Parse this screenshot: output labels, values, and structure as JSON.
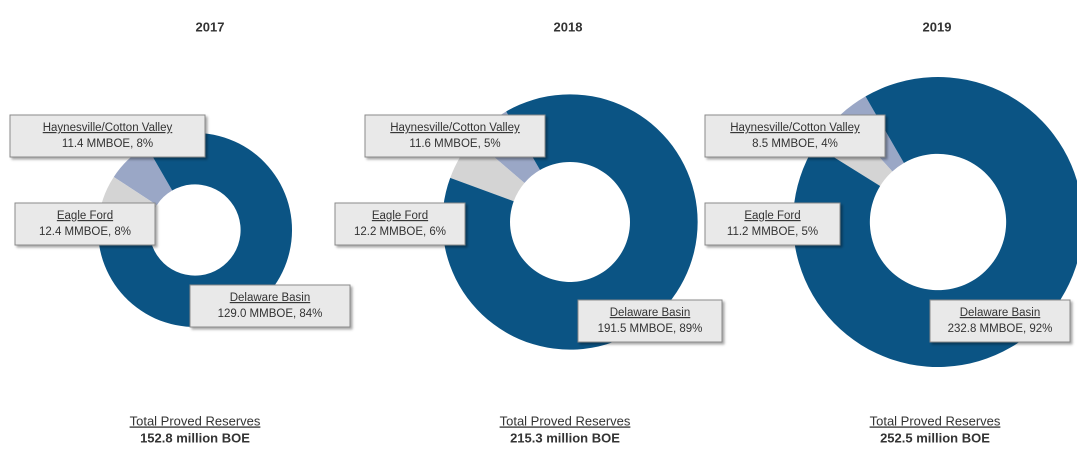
{
  "chart_data": [
    {
      "type": "donut",
      "title": "2017",
      "categories": [
        "Haynesville/Cotton Valley",
        "Eagle Ford",
        "Delaware Basin"
      ],
      "values": [
        11.4,
        12.4,
        129.0
      ],
      "value_labels": [
        "11.4 MMBOE, 8%",
        "12.4 MMBOE, 8%",
        "129.0 MMBOE, 84%"
      ],
      "colors": [
        "#9aa7c6",
        "#d4d4d4",
        "#0b5484"
      ],
      "footer_label": "Total Proved Reserves",
      "footer_value": "152.8 million BOE"
    },
    {
      "type": "donut",
      "title": "2018",
      "categories": [
        "Haynesville/Cotton Valley",
        "Eagle Ford",
        "Delaware Basin"
      ],
      "values": [
        11.6,
        12.2,
        191.5
      ],
      "value_labels": [
        "11.6 MMBOE, 5%",
        "12.2 MMBOE, 6%",
        "191.5 MMBOE, 89%"
      ],
      "colors": [
        "#9aa7c6",
        "#d4d4d4",
        "#0b5484"
      ],
      "footer_label": "Total Proved Reserves",
      "footer_value": "215.3 million BOE"
    },
    {
      "type": "donut",
      "title": "2019",
      "categories": [
        "Haynesville/Cotton Valley",
        "Eagle Ford",
        "Delaware Basin"
      ],
      "values": [
        8.5,
        11.2,
        232.8
      ],
      "value_labels": [
        "8.5 MMBOE, 4%",
        "11.2 MMBOE, 5%",
        "232.8 MMBOE, 92%"
      ],
      "colors": [
        "#9aa7c6",
        "#d4d4d4",
        "#0b5484"
      ],
      "footer_label": "Total Proved Reserves",
      "footer_value": "252.5 million BOE"
    }
  ]
}
